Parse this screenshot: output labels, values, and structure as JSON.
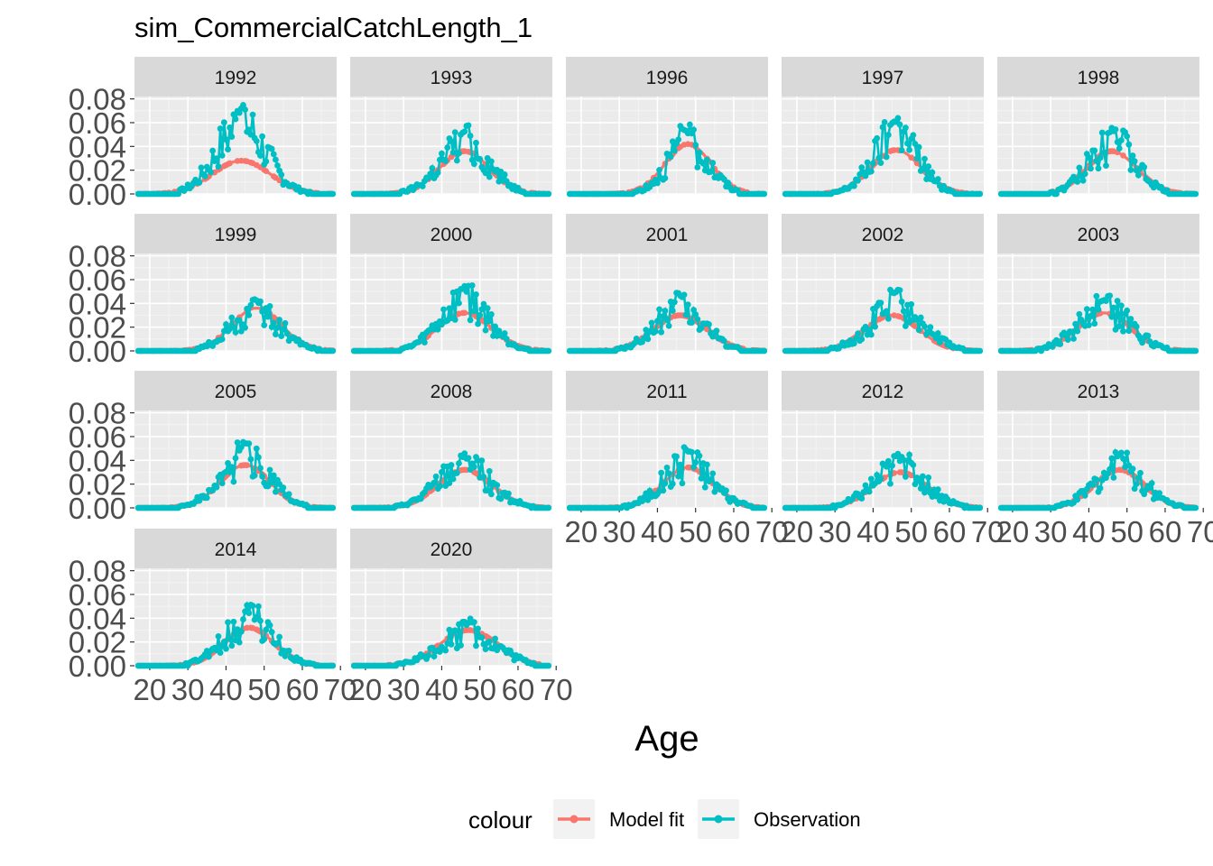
{
  "chart_data": {
    "type": "scatter",
    "title": "sim_CommercialCatchLength_1",
    "xlabel": "Age",
    "ylabel": "",
    "xlim": [
      16,
      69
    ],
    "ylim": [
      0,
      0.082
    ],
    "xticks": [
      20,
      30,
      40,
      50,
      60,
      70
    ],
    "yticks": [
      0.0,
      0.02,
      0.04,
      0.06,
      0.08
    ],
    "ytick_labels": [
      "0.00",
      "0.02",
      "0.04",
      "0.06",
      "0.08"
    ],
    "grid": true,
    "legend": {
      "title": "colour",
      "position": "bottom",
      "entries": [
        {
          "label": "Model fit",
          "color": "#F8766D"
        },
        {
          "label": "Observation",
          "color": "#00BFC4"
        }
      ]
    },
    "panels": [
      {
        "label": "1992",
        "obs_peak": 0.079,
        "obs_mean": 44,
        "obs_sd": 6.5,
        "fit_peak": 0.028,
        "fit_mean": 44,
        "fit_sd": 7.5
      },
      {
        "label": "1993",
        "obs_peak": 0.058,
        "obs_mean": 46,
        "obs_sd": 6.5,
        "fit_peak": 0.036,
        "fit_mean": 46,
        "fit_sd": 6.5
      },
      {
        "label": "1996",
        "obs_peak": 0.059,
        "obs_mean": 48,
        "obs_sd": 5.5,
        "fit_peak": 0.042,
        "fit_mean": 48,
        "fit_sd": 6.0
      },
      {
        "label": "1997",
        "obs_peak": 0.066,
        "obs_mean": 46,
        "obs_sd": 6.0,
        "fit_peak": 0.037,
        "fit_mean": 46,
        "fit_sd": 6.5
      },
      {
        "label": "1998",
        "obs_peak": 0.06,
        "obs_mean": 46,
        "obs_sd": 6.0,
        "fit_peak": 0.036,
        "fit_mean": 46,
        "fit_sd": 6.5
      },
      {
        "label": "1999",
        "obs_peak": 0.046,
        "obs_mean": 48,
        "obs_sd": 6.5,
        "fit_peak": 0.036,
        "fit_mean": 48,
        "fit_sd": 6.5
      },
      {
        "label": "2000",
        "obs_peak": 0.058,
        "obs_mean": 46,
        "obs_sd": 6.5,
        "fit_peak": 0.032,
        "fit_mean": 46,
        "fit_sd": 7.0
      },
      {
        "label": "2001",
        "obs_peak": 0.049,
        "obs_mean": 46,
        "obs_sd": 6.5,
        "fit_peak": 0.03,
        "fit_mean": 46,
        "fit_sd": 7.0
      },
      {
        "label": "2002",
        "obs_peak": 0.052,
        "obs_mean": 46,
        "obs_sd": 7.0,
        "fit_peak": 0.03,
        "fit_mean": 45,
        "fit_sd": 7.0
      },
      {
        "label": "2003",
        "obs_peak": 0.048,
        "obs_mean": 44,
        "obs_sd": 7.0,
        "fit_peak": 0.032,
        "fit_mean": 44,
        "fit_sd": 7.0
      },
      {
        "label": "2005",
        "obs_peak": 0.056,
        "obs_mean": 45,
        "obs_sd": 6.5,
        "fit_peak": 0.036,
        "fit_mean": 45,
        "fit_sd": 6.5
      },
      {
        "label": "2008",
        "obs_peak": 0.047,
        "obs_mean": 46,
        "obs_sd": 7.0,
        "fit_peak": 0.032,
        "fit_mean": 46,
        "fit_sd": 7.0
      },
      {
        "label": "2011",
        "obs_peak": 0.052,
        "obs_mean": 48,
        "obs_sd": 6.5,
        "fit_peak": 0.034,
        "fit_mean": 48,
        "fit_sd": 6.5
      },
      {
        "label": "2012",
        "obs_peak": 0.046,
        "obs_mean": 47,
        "obs_sd": 7.0,
        "fit_peak": 0.03,
        "fit_mean": 47,
        "fit_sd": 7.0
      },
      {
        "label": "2013",
        "obs_peak": 0.047,
        "obs_mean": 48,
        "obs_sd": 6.5,
        "fit_peak": 0.032,
        "fit_mean": 48,
        "fit_sd": 6.5
      },
      {
        "label": "2014",
        "obs_peak": 0.052,
        "obs_mean": 46,
        "obs_sd": 6.5,
        "fit_peak": 0.032,
        "fit_mean": 46,
        "fit_sd": 6.5
      },
      {
        "label": "2020",
        "obs_peak": 0.04,
        "obs_mean": 47,
        "obs_sd": 7.5,
        "fit_peak": 0.03,
        "fit_mean": 47,
        "fit_sd": 7.5
      }
    ]
  }
}
